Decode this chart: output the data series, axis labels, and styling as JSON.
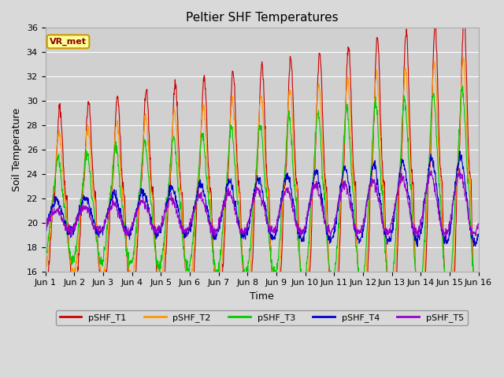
{
  "title": "Peltier SHF Temperatures",
  "xlabel": "Time",
  "ylabel": "Soil Temperature",
  "xlim": [
    0,
    15
  ],
  "ylim": [
    16,
    36
  ],
  "yticks": [
    16,
    18,
    20,
    22,
    24,
    26,
    28,
    30,
    32,
    34,
    36
  ],
  "xtick_labels": [
    "Jun 1",
    "Jun 2",
    "Jun 3",
    "Jun 4",
    "Jun 5",
    "Jun 6",
    "Jun 7",
    "Jun 8",
    "Jun 9",
    "Jun 10",
    "Jun 11",
    "Jun 12",
    "Jun 13",
    "Jun 14",
    "Jun 15",
    "Jun 16"
  ],
  "annotation_text": "VR_met",
  "colors": {
    "T1": "#cc0000",
    "T2": "#ff9900",
    "T3": "#00cc00",
    "T4": "#0000cc",
    "T5": "#9900cc"
  },
  "legend_labels": [
    "pSHF_T1",
    "pSHF_T2",
    "pSHF_T3",
    "pSHF_T4",
    "pSHF_T5"
  ],
  "background_color": "#d9d9d9",
  "plot_bg_color": "#d0d0d0",
  "grid_color": "#ffffff",
  "title_fontsize": 11,
  "axis_label_fontsize": 9,
  "tick_fontsize": 8
}
